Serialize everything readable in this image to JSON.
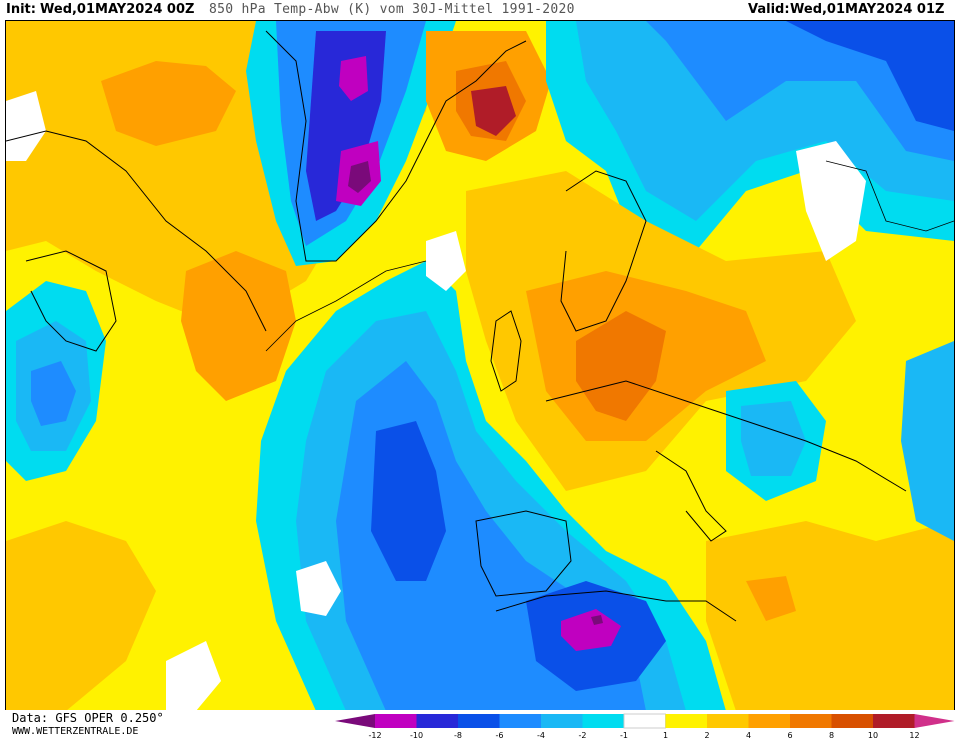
{
  "header": {
    "init_label": "Init:",
    "init_value": "Wed,01MAY2024 00Z",
    "title": "850 hPa Temp-Abw (K) vom 30J-Mittel 1991-2020",
    "valid_label": "Valid:",
    "valid_value": "Wed,01MAY2024 01Z"
  },
  "footer": {
    "data_source": "Data: GFS OPER 0.250°",
    "website": "WWW.WETTERZENTRALE.DE"
  },
  "legend": {
    "ticks": [
      "-12",
      "-10",
      "-8",
      "-6",
      "-4",
      "-2",
      "-1",
      "1",
      "2",
      "4",
      "6",
      "8",
      "10",
      "12"
    ],
    "colors": [
      "#7a0a7a",
      "#c000c0",
      "#2828d8",
      "#0a50e8",
      "#1e8cff",
      "#1ab8f5",
      "#00dcf0",
      "#ffffff",
      "#fff200",
      "#ffc800",
      "#ffa000",
      "#f07800",
      "#d85000",
      "#b01c28",
      "#d0308a"
    ]
  },
  "map": {
    "colors": {
      "neutral": "#ffffff",
      "warm1": "#fff200",
      "warm2": "#ffc800",
      "warm3": "#ffa000",
      "warm4": "#f07800",
      "warm5": "#d85000",
      "warm6": "#b01c28",
      "cold1": "#00dcf0",
      "cold2": "#1ab8f5",
      "cold3": "#1e8cff",
      "cold4": "#0a50e8",
      "cold5": "#2828d8",
      "cold6": "#c000c0",
      "cold7": "#7a0a7a"
    }
  }
}
